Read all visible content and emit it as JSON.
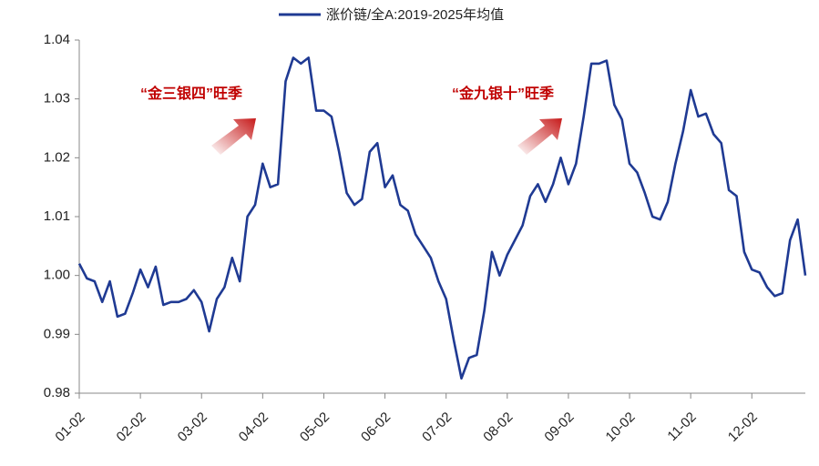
{
  "chart_data": {
    "type": "line",
    "categories": [
      "01-02",
      null,
      null,
      null,
      null,
      null,
      null,
      null,
      "02-02",
      null,
      null,
      null,
      null,
      null,
      null,
      null,
      "03-02",
      null,
      null,
      null,
      null,
      null,
      null,
      null,
      "04-02",
      null,
      null,
      null,
      null,
      null,
      null,
      null,
      "05-02",
      null,
      null,
      null,
      null,
      null,
      null,
      null,
      "06-02",
      null,
      null,
      null,
      null,
      null,
      null,
      null,
      "07-02",
      null,
      null,
      null,
      null,
      null,
      null,
      null,
      "08-02",
      null,
      null,
      null,
      null,
      null,
      null,
      null,
      "09-02",
      null,
      null,
      null,
      null,
      null,
      null,
      null,
      "10-02",
      null,
      null,
      null,
      null,
      null,
      null,
      null,
      "11-02",
      null,
      null,
      null,
      null,
      null,
      null,
      null,
      "12-02",
      null,
      null,
      null,
      null,
      null,
      null,
      null
    ],
    "series": [
      {
        "name": "涨价链/全A:2019-2025年均值",
        "color": "#1f3a93",
        "values": [
          1.002,
          0.9995,
          0.999,
          0.9955,
          0.999,
          0.993,
          0.9935,
          0.997,
          1.001,
          0.998,
          1.0015,
          0.995,
          0.9955,
          0.9955,
          0.996,
          0.9975,
          0.9955,
          0.9905,
          0.996,
          0.998,
          1.003,
          0.999,
          1.01,
          1.012,
          1.019,
          1.015,
          1.0155,
          1.033,
          1.037,
          1.036,
          1.037,
          1.028,
          1.028,
          1.027,
          1.021,
          1.014,
          1.012,
          1.013,
          1.021,
          1.0225,
          1.015,
          1.017,
          1.012,
          1.011,
          1.007,
          1.005,
          1.003,
          0.999,
          0.996,
          0.989,
          0.9825,
          0.986,
          0.9865,
          0.994,
          1.004,
          1.0,
          1.0035,
          1.006,
          1.0085,
          1.0135,
          1.0155,
          1.0125,
          1.0155,
          1.02,
          1.0155,
          1.019,
          1.027,
          1.036,
          1.036,
          1.0365,
          1.029,
          1.0265,
          1.019,
          1.0175,
          1.014,
          1.01,
          1.0095,
          1.0125,
          1.019,
          1.0245,
          1.0315,
          1.027,
          1.0275,
          1.024,
          1.0225,
          1.0145,
          1.0135,
          1.004,
          1.001,
          1.0005,
          0.998,
          0.9965,
          0.997,
          1.006,
          1.0095,
          1.0
        ]
      }
    ],
    "ylim": [
      0.98,
      1.04
    ],
    "yticks": [
      0.98,
      0.99,
      {
        "value": 1,
        "label": "1.00"
      },
      1.01,
      1.02,
      1.03,
      1.04
    ],
    "annotations": [
      "“金三银四”旺季",
      "“金九银十”旺季"
    ],
    "legend": "top"
  }
}
